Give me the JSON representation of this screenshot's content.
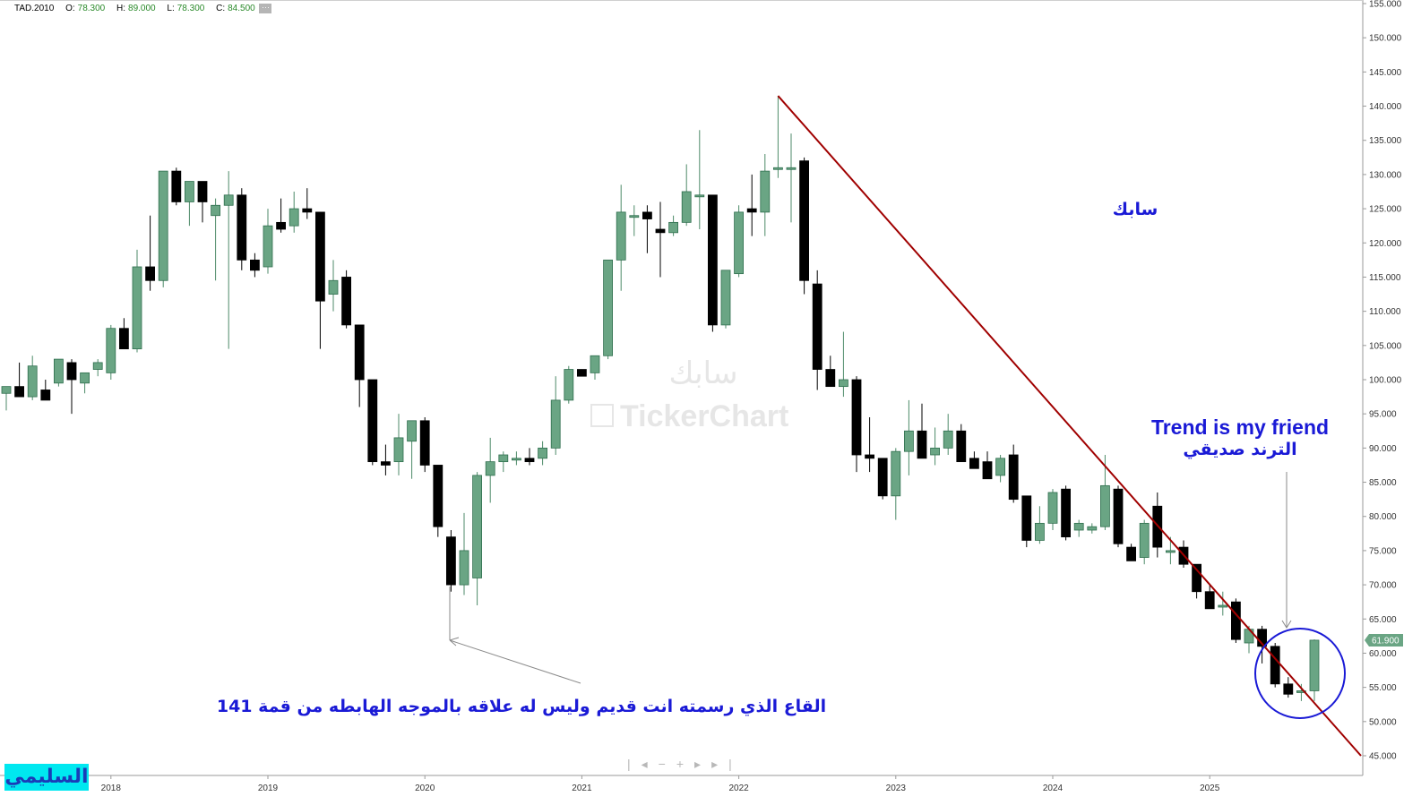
{
  "header": {
    "symbol": "TAD.2010",
    "o_label": "O:",
    "o_value": "78.300",
    "h_label": "H:",
    "h_value": "89.000",
    "l_label": "L:",
    "l_value": "78.300",
    "c_label": "C:",
    "c_value": "84.500",
    "more": "···"
  },
  "logo_text": "السليمي",
  "colors": {
    "bull": "#6aa584",
    "bear": "#000000",
    "trendline": "#a00000",
    "annotation": "#1a1ad6",
    "price_tag": "#6aa584"
  },
  "chart_data": {
    "type": "candlestick",
    "period": "monthly",
    "ylim": [
      45,
      155
    ],
    "yticks": [
      "45.000",
      "50.000",
      "55.000",
      "60.000",
      "65.000",
      "70.000",
      "75.000",
      "80.000",
      "85.000",
      "90.000",
      "95.000",
      "100.000",
      "105.000",
      "110.000",
      "115.000",
      "120.000",
      "125.000",
      "130.000",
      "135.000",
      "140.000",
      "145.000",
      "150.000",
      "155.000"
    ],
    "xticks": [
      "2018",
      "2019",
      "2020",
      "2021",
      "2022",
      "2023",
      "2024",
      "2025"
    ],
    "last_price": "61.900",
    "candles": [
      [
        98.0,
        99.0,
        95.5,
        99.0
      ],
      [
        99.0,
        102.5,
        98.0,
        97.5
      ],
      [
        97.5,
        103.5,
        97.0,
        102.0
      ],
      [
        98.5,
        100.0,
        97.0,
        97.0
      ],
      [
        99.5,
        103.0,
        99.0,
        103.0
      ],
      [
        102.5,
        103.0,
        95.0,
        100.0
      ],
      [
        99.5,
        101.0,
        98.0,
        101.0
      ],
      [
        101.5,
        103.0,
        100.5,
        102.5
      ],
      [
        101.0,
        108.0,
        100.0,
        107.5
      ],
      [
        107.5,
        109.0,
        104.5,
        104.5
      ],
      [
        104.5,
        119.0,
        104.0,
        116.5
      ],
      [
        116.5,
        124.0,
        113.0,
        114.5
      ],
      [
        114.5,
        130.5,
        113.5,
        130.5
      ],
      [
        130.5,
        131.0,
        125.5,
        126.0
      ],
      [
        126.0,
        129.0,
        122.5,
        129.0
      ],
      [
        129.0,
        129.0,
        123.0,
        126.0
      ],
      [
        124.0,
        126.5,
        114.5,
        125.5
      ],
      [
        125.5,
        130.5,
        104.5,
        127.0
      ],
      [
        127.0,
        128.0,
        116.0,
        117.5
      ],
      [
        117.5,
        118.5,
        115.0,
        116.0
      ],
      [
        116.5,
        125.0,
        115.5,
        122.5
      ],
      [
        123.0,
        126.5,
        121.5,
        122.0
      ],
      [
        122.5,
        127.5,
        121.5,
        125.0
      ],
      [
        125.0,
        128.0,
        123.5,
        124.5
      ],
      [
        124.5,
        124.5,
        104.5,
        111.5
      ],
      [
        112.5,
        117.5,
        110.0,
        114.5
      ],
      [
        115.0,
        116.0,
        107.5,
        108.0
      ],
      [
        108.0,
        108.0,
        96.0,
        100.0
      ],
      [
        100.0,
        100.0,
        87.5,
        88.0
      ],
      [
        88.0,
        90.5,
        86.0,
        87.5
      ],
      [
        88.0,
        95.0,
        86.0,
        91.5
      ],
      [
        91.0,
        94.0,
        85.5,
        94.0
      ],
      [
        94.0,
        94.5,
        86.5,
        87.5
      ],
      [
        87.5,
        87.5,
        77.0,
        78.5
      ],
      [
        77.0,
        78.0,
        69.0,
        70.0
      ],
      [
        70.0,
        80.5,
        68.5,
        75.0
      ],
      [
        71.0,
        86.5,
        67.0,
        86.0
      ],
      [
        86.0,
        91.5,
        82.0,
        88.0
      ],
      [
        88.0,
        89.5,
        86.5,
        89.0
      ],
      [
        88.5,
        89.5,
        87.5,
        88.5
      ],
      [
        88.5,
        90.0,
        87.5,
        88.0
      ],
      [
        88.5,
        91.0,
        87.5,
        90.0
      ],
      [
        90.0,
        100.5,
        89.0,
        97.0
      ],
      [
        97.0,
        102.0,
        96.5,
        101.5
      ],
      [
        101.5,
        101.5,
        100.5,
        100.5
      ],
      [
        101.0,
        103.0,
        100.0,
        103.5
      ],
      [
        103.5,
        117.5,
        103.0,
        117.5
      ],
      [
        117.5,
        128.5,
        113.0,
        124.5
      ],
      [
        124.0,
        125.5,
        121.0,
        124.0
      ],
      [
        124.5,
        125.5,
        118.5,
        123.5
      ],
      [
        122.0,
        126.0,
        115.0,
        121.5
      ],
      [
        121.5,
        124.0,
        121.0,
        123.0
      ],
      [
        123.0,
        131.5,
        122.5,
        127.5
      ],
      [
        127.0,
        136.5,
        122.0,
        127.0
      ],
      [
        127.0,
        127.0,
        107.0,
        108.0
      ],
      [
        108.0,
        116.0,
        107.5,
        116.0
      ],
      [
        115.5,
        125.5,
        115.0,
        124.5
      ],
      [
        125.0,
        130.0,
        121.0,
        124.5
      ],
      [
        124.5,
        133.0,
        121.0,
        130.5
      ],
      [
        131.0,
        141.5,
        129.5,
        131.0
      ],
      [
        131.0,
        136.0,
        123.0,
        131.0
      ],
      [
        132.0,
        132.5,
        112.5,
        114.5
      ],
      [
        114.0,
        116.0,
        98.5,
        101.5
      ],
      [
        101.5,
        103.5,
        99.0,
        99.0
      ],
      [
        99.0,
        107.0,
        97.5,
        100.0
      ],
      [
        100.0,
        100.5,
        86.5,
        89.0
      ],
      [
        89.0,
        94.5,
        86.5,
        88.5
      ],
      [
        88.5,
        88.5,
        82.5,
        83.0
      ],
      [
        83.0,
        90.0,
        79.5,
        89.5
      ],
      [
        89.5,
        97.0,
        86.0,
        92.5
      ],
      [
        92.5,
        96.5,
        88.5,
        88.5
      ],
      [
        89.0,
        93.0,
        87.5,
        90.0
      ],
      [
        90.0,
        95.0,
        89.0,
        92.5
      ],
      [
        92.5,
        93.5,
        88.0,
        88.0
      ],
      [
        88.5,
        89.5,
        87.5,
        87.0
      ],
      [
        88.0,
        89.5,
        85.5,
        85.5
      ],
      [
        86.0,
        89.0,
        85.0,
        88.5
      ],
      [
        89.0,
        90.5,
        82.0,
        82.5
      ],
      [
        83.0,
        83.0,
        75.5,
        76.5
      ],
      [
        76.5,
        81.5,
        76.0,
        79.0
      ],
      [
        79.0,
        84.0,
        78.0,
        83.5
      ],
      [
        84.0,
        84.5,
        76.5,
        77.0
      ],
      [
        78.0,
        79.5,
        77.0,
        79.0
      ],
      [
        78.0,
        79.0,
        77.5,
        78.5
      ],
      [
        78.5,
        89.0,
        78.0,
        84.5
      ],
      [
        84.0,
        84.5,
        75.5,
        76.0
      ],
      [
        75.5,
        76.0,
        73.5,
        73.5
      ],
      [
        74.0,
        79.5,
        73.0,
        79.0
      ],
      [
        81.5,
        83.5,
        74.0,
        75.5
      ],
      [
        75.0,
        77.0,
        73.0,
        75.0
      ],
      [
        75.5,
        76.5,
        72.5,
        73.0
      ],
      [
        73.0,
        73.0,
        68.0,
        69.0
      ],
      [
        69.0,
        70.0,
        66.5,
        66.5
      ],
      [
        67.0,
        69.0,
        65.5,
        67.0
      ],
      [
        67.5,
        68.0,
        61.5,
        62.0
      ],
      [
        61.5,
        64.0,
        60.0,
        63.5
      ],
      [
        63.5,
        64.0,
        58.5,
        61.0
      ],
      [
        61.0,
        61.5,
        55.0,
        55.5
      ],
      [
        55.5,
        56.5,
        53.5,
        54.0
      ],
      [
        54.5,
        55.5,
        53.0,
        54.5
      ],
      [
        54.5,
        62.0,
        53.0,
        61.9
      ]
    ],
    "trendline": {
      "from": [
        "2022",
        141.5
      ],
      "to": [
        "2025",
        45.0
      ]
    },
    "annotations": [
      {
        "text": "سابك",
        "kind": "label"
      },
      {
        "text": "Trend is my friend",
        "kind": "label"
      },
      {
        "text": "الترند صديقي",
        "kind": "label"
      },
      {
        "text": "141 القاع الذي رسمته انت قديم وليس له علاقه بالموجه الهابطه من قمة",
        "kind": "label"
      }
    ],
    "watermark": {
      "arabic": "سابك",
      "brand": "TickerChart"
    }
  }
}
